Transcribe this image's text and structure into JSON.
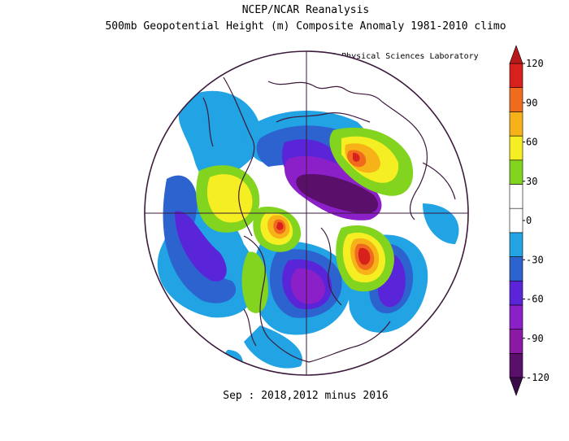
{
  "title": "NCEP/NCAR Reanalysis",
  "subtitle": "500mb Geopotential Height (m) Composite Anomaly 1981-2010 climo",
  "credit": "NOAA Physical Sciences Laboratory",
  "footer": "Sep : 2018,2012 minus 2016",
  "colors": {
    "map_outline": "#3c1a3c",
    "coastline": "#3c1a3c",
    "bins": [
      "#5a0f6a",
      "#8a1aa4",
      "#8b1fc8",
      "#5a24d9",
      "#2d63cf",
      "#21a3e4",
      "#ffffff",
      "#ffffff",
      "#82d41f",
      "#f4ee22",
      "#f7b219",
      "#f06b1e",
      "#d8211d"
    ]
  },
  "colorbar": {
    "labels": [
      "120",
      "90",
      "60",
      "30",
      "0",
      "-30",
      "-60",
      "-90",
      "-120"
    ]
  }
}
